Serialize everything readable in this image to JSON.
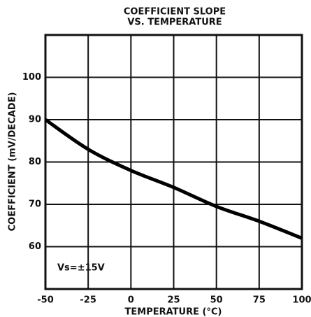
{
  "chart_data": {
    "type": "line",
    "title": [
      "COEFFICIENT SLOPE",
      "VS. TEMPERATURE"
    ],
    "x_label": "TEMPERATURE (°C)",
    "y_label": "COEFFICIENT (mV/DECADE)",
    "annotation": "Vs=±15V",
    "x": [
      -50,
      -25,
      0,
      25,
      50,
      75,
      100
    ],
    "series": [
      {
        "color": "#000000",
        "values": [
          90,
          83,
          78,
          74,
          69.5,
          66,
          62
        ]
      }
    ],
    "xlim": [
      -50,
      100
    ],
    "xticks": [
      -50,
      -25,
      0,
      25,
      50,
      75,
      100
    ],
    "ylim": [
      50,
      110
    ],
    "yticks": [
      60,
      70,
      80,
      90,
      100
    ],
    "grid": true
  }
}
